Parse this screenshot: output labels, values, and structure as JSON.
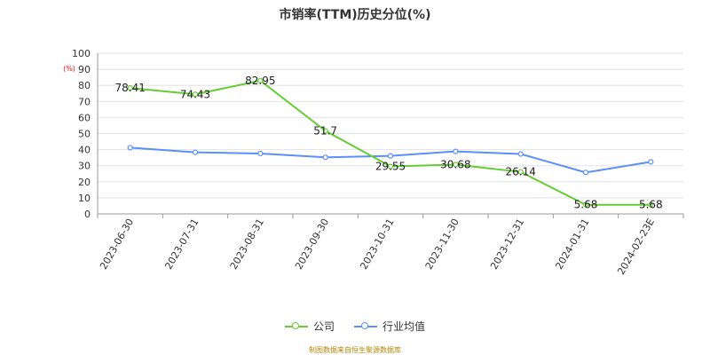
{
  "colors": {
    "company": "#66cc33",
    "industry": "#5b8ff9",
    "unit_label": "#ff0000",
    "source_note": "#b8860b"
  },
  "chart_data": {
    "type": "line",
    "title": "市销率(TTM)历史分位(%)",
    "ylabel": "(%)",
    "ylim": [
      0,
      100
    ],
    "yticks": [
      0,
      10,
      20,
      30,
      40,
      50,
      60,
      70,
      80,
      90,
      100
    ],
    "categories": [
      "2023-06-30",
      "2023-07-31",
      "2023-08-31",
      "2023-09-30",
      "2023-10-31",
      "2023-11-30",
      "2023-12-31",
      "2024-01-31",
      "2024-02-23E"
    ],
    "grid": true,
    "legend_position": "bottom-center",
    "series": [
      {
        "name": "公司",
        "color": "#66cc33",
        "values": [
          78.41,
          74.43,
          82.95,
          51.7,
          29.55,
          30.68,
          26.14,
          5.68,
          5.68
        ],
        "labels": [
          "78.41",
          "74.43",
          "82.95",
          "51.7",
          "29.55",
          "30.68",
          "26.14",
          "5.68",
          "5.68"
        ]
      },
      {
        "name": "行业均值",
        "color": "#5b8ff9",
        "values": [
          41.2,
          38.3,
          37.6,
          35.2,
          36.1,
          38.9,
          37.3,
          25.8,
          32.4
        ]
      }
    ]
  },
  "legend": {
    "company": "公司",
    "industry": "行业均值"
  },
  "footer": {
    "source": "制图数据来自恒生聚源数据库"
  }
}
